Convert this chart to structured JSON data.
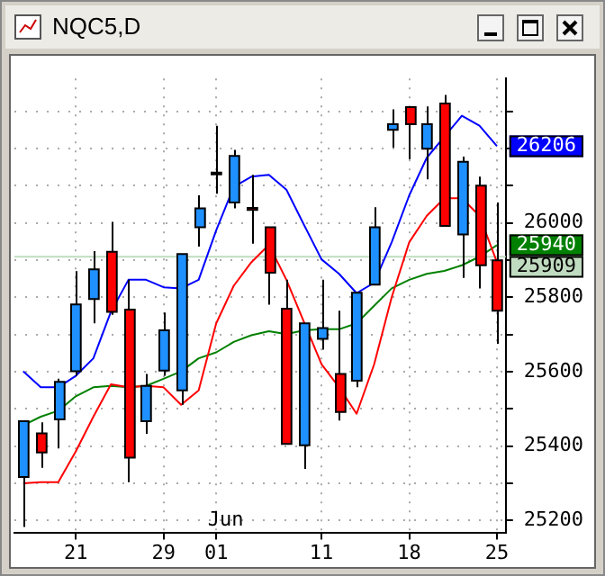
{
  "chart_data": {
    "type": "candlestick",
    "title": "NQC5,D",
    "categories": [
      null,
      null,
      null,
      "21",
      null,
      null,
      null,
      null,
      "29",
      null,
      null,
      "01",
      null,
      null,
      null,
      null,
      null,
      "11",
      null,
      null,
      null,
      null,
      "18",
      null,
      null,
      null,
      null,
      "25"
    ],
    "ohlc": [
      [
        25317,
        25467,
        25183,
        25467
      ],
      [
        25434,
        25464,
        25342,
        25383
      ],
      [
        25472,
        25581,
        25394,
        25573
      ],
      [
        25601,
        25870,
        25589,
        25781
      ],
      [
        25795,
        25924,
        25730,
        25875
      ],
      [
        25922,
        26003,
        25753,
        25761
      ],
      [
        25767,
        25847,
        25303,
        25369
      ],
      [
        25467,
        25594,
        25433,
        25562
      ],
      [
        25603,
        25759,
        25589,
        25711
      ],
      [
        25550,
        25916,
        25511,
        25916
      ],
      [
        25988,
        26074,
        25936,
        26039
      ],
      [
        26135,
        26261,
        26078,
        26130
      ],
      [
        26055,
        26196,
        26039,
        26180
      ],
      [
        26040,
        26129,
        25944,
        26035
      ],
      [
        25988,
        25988,
        25780,
        25866
      ],
      [
        25769,
        25847,
        25406,
        25406
      ],
      [
        25402,
        25730,
        25339,
        25730
      ],
      [
        25688,
        25847,
        25659,
        25717
      ],
      [
        25594,
        25764,
        25469,
        25492
      ],
      [
        25576,
        25812,
        25558,
        25812
      ],
      [
        25834,
        26042,
        25834,
        25988
      ],
      [
        26250,
        26305,
        26202,
        26265
      ],
      [
        26311,
        26311,
        26171,
        26265
      ],
      [
        26199,
        26313,
        26117,
        26265
      ],
      [
        26321,
        26344,
        25992,
        25992
      ],
      [
        25969,
        26178,
        25852,
        26164
      ],
      [
        26100,
        26124,
        25824,
        25886
      ],
      [
        25899,
        26055,
        25675,
        25764
      ]
    ],
    "colors": [
      "#1e90ff",
      "#ff0000",
      "#1e90ff",
      "#1e90ff",
      "#1e90ff",
      "#ff0000",
      "#ff0000",
      "#1e90ff",
      "#1e90ff",
      "#1e90ff",
      "#1e90ff",
      "#ff0000",
      "#1e90ff",
      "#ff0000",
      "#ff0000",
      "#ff0000",
      "#1e90ff",
      "#1e90ff",
      "#ff0000",
      "#1e90ff",
      "#1e90ff",
      "#1e90ff",
      "#ff0000",
      "#1e90ff",
      "#ff0000",
      "#1e90ff",
      "#ff0000",
      "#ff0000"
    ],
    "series": [
      {
        "type": "line",
        "color": "#0000ff",
        "values": [
          25601,
          25558,
          25558,
          25589,
          25636,
          25761,
          25847,
          25847,
          25827,
          25824,
          25847,
          25980,
          26097,
          26124,
          26129,
          26089,
          25995,
          25902,
          25863,
          25811,
          25839,
          25948,
          26074,
          26175,
          null,
          26288,
          26261,
          26206
        ],
        "value_labels": [
          null,
          null,
          null,
          null,
          null,
          null,
          null,
          null,
          null,
          null,
          null,
          null,
          null,
          null,
          null,
          null,
          null,
          null,
          null,
          null,
          null,
          null,
          null,
          null,
          null,
          null,
          null,
          "26206"
        ]
      },
      {
        "type": "line",
        "color": "#ff0000",
        "values": [
          25300,
          25303,
          25303,
          25386,
          25479,
          25566,
          25558,
          25562,
          25558,
          25511,
          25550,
          25730,
          25831,
          25894,
          25941,
          25847,
          null,
          25620,
          25558,
          25487,
          25620,
          25800,
          25948,
          26019,
          26066,
          26066,
          26019,
          25894
        ]
      },
      {
        "type": "line",
        "color": "#008000",
        "values": [
          25456,
          25479,
          25495,
          25534,
          25558,
          25562,
          25558,
          25562,
          25581,
          25601,
          25636,
          25652,
          25680,
          25698,
          25709,
          25701,
          25711,
          25714,
          25714,
          25730,
          25777,
          25824,
          25847,
          25863,
          25871,
          25886,
          25909,
          25940
        ],
        "value_labels": [
          null,
          null,
          null,
          null,
          null,
          null,
          null,
          null,
          null,
          null,
          null,
          null,
          null,
          null,
          null,
          null,
          null,
          null,
          null,
          null,
          null,
          null,
          null,
          null,
          null,
          null,
          null,
          "25940"
        ]
      }
    ],
    "ref_lines": [
      {
        "axis": "y",
        "value": 25909,
        "label": "25909",
        "color": "#c0dcc0"
      }
    ],
    "annotations": [
      "Jun"
    ],
    "ylim": [
      25168,
      26388
    ],
    "yticks": [
      {
        "value": 25200,
        "label": "25200"
      },
      {
        "value": 25300,
        "label": null
      },
      {
        "value": 25400,
        "label": "25400"
      },
      {
        "value": 25500,
        "label": null
      },
      {
        "value": 25600,
        "label": "25600"
      },
      {
        "value": 25700,
        "label": null
      },
      {
        "value": 25800,
        "label": "25800"
      },
      {
        "value": 25900,
        "label": null
      },
      {
        "value": 26000,
        "label": "26000"
      },
      {
        "value": 26100,
        "label": null
      },
      {
        "value": 26200,
        "label": null
      },
      {
        "value": 26300,
        "label": null
      }
    ],
    "grid": true,
    "marker": "none",
    "line_style": "solid"
  }
}
